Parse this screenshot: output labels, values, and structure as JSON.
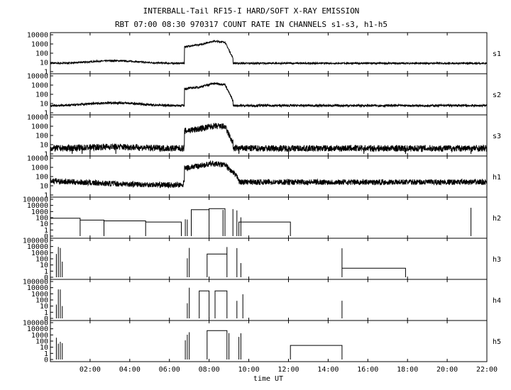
{
  "chart_data": {
    "type": "line",
    "title": "INTERBALL-Tail RF15-I HARD/SOFT X-RAY EMISSION",
    "subtitle": "RBT 07:00 08:30 970317  COUNT RATE IN CHANNELS s1-s3, h1-h5",
    "xlabel": "time UT",
    "x_tick_labels": [
      "02:00",
      "04:00",
      "06:00",
      "08:00",
      "10:00",
      "12:00",
      "14:00",
      "16:00",
      "18:00",
      "20:00",
      "22:00"
    ],
    "xlim_hours": [
      0,
      22
    ],
    "yscale": "log",
    "panels": [
      {
        "channel": "s1",
        "y_tick_labels": [
          "1",
          "10",
          "100",
          "1000",
          "10000"
        ],
        "ylim": [
          1,
          10000
        ],
        "baseline": 8,
        "pre_hump": 15,
        "burst": [
          [
            6.75,
            500
          ],
          [
            7.5,
            800
          ],
          [
            8.2,
            2000
          ],
          [
            8.8,
            1600
          ],
          [
            9.2,
            30
          ]
        ],
        "noise": 0.08,
        "spikes": []
      },
      {
        "channel": "s2",
        "y_tick_labels": [
          "1",
          "10",
          "100",
          "1000",
          "10000"
        ],
        "ylim": [
          1,
          10000
        ],
        "baseline": 6,
        "pre_hump": 12,
        "burst": [
          [
            6.75,
            400
          ],
          [
            7.5,
            600
          ],
          [
            8.2,
            1500
          ],
          [
            8.8,
            1200
          ],
          [
            9.2,
            20
          ]
        ],
        "noise": 0.12,
        "spikes": []
      },
      {
        "channel": "s3",
        "y_tick_labels": [
          "1",
          "10",
          "100",
          "1000",
          "10000"
        ],
        "ylim": [
          1,
          10000
        ],
        "baseline": 4,
        "pre_hump": 6,
        "burst": [
          [
            6.75,
            300
          ],
          [
            7.5,
            500
          ],
          [
            8.2,
            1000
          ],
          [
            8.8,
            900
          ],
          [
            9.2,
            15
          ]
        ],
        "noise": 0.35,
        "spikes": [
          1.1,
          1.6,
          2.0,
          3.3,
          9.5,
          12.0,
          15.8,
          17.9,
          21.2
        ]
      },
      {
        "channel": "h1",
        "y_tick_labels": [
          "1",
          "10",
          "100",
          "1000",
          "10000"
        ],
        "ylim": [
          1,
          10000
        ],
        "baseline": 25,
        "pre_hump": 10,
        "burst": [
          [
            6.75,
            800
          ],
          [
            7.5,
            1500
          ],
          [
            8.2,
            2500
          ],
          [
            8.8,
            1800
          ],
          [
            9.5,
            60
          ]
        ],
        "noise": 0.3,
        "spikes": []
      },
      {
        "channel": "h2",
        "y_tick_labels": [
          "0",
          "1",
          "10",
          "100",
          "1000",
          "10000",
          "100000"
        ],
        "ylim": [
          0.1,
          100000
        ],
        "steps": [
          [
            0,
            1.5,
            80
          ],
          [
            1.5,
            2.7,
            40
          ],
          [
            2.7,
            4.8,
            30
          ],
          [
            4.8,
            6.6,
            20
          ],
          [
            7.1,
            8.0,
            2000
          ],
          [
            8.0,
            8.8,
            3000
          ],
          [
            9.5,
            12.1,
            20
          ]
        ],
        "spikes": [
          6.8,
          6.9,
          8.7,
          9.2,
          9.4,
          9.6,
          21.2
        ]
      },
      {
        "channel": "h3",
        "y_tick_labels": [
          "0",
          "1",
          "10",
          "100",
          "1000",
          "10000",
          "100000"
        ],
        "ylim": [
          0.1,
          100000
        ],
        "steps": [
          [
            7.9,
            8.9,
            600
          ],
          [
            14.7,
            17.9,
            3
          ]
        ],
        "spikes": [
          0.3,
          0.4,
          0.5,
          0.6,
          6.9,
          7.0,
          8.9,
          9.4,
          9.6,
          14.7
        ]
      },
      {
        "channel": "h4",
        "y_tick_labels": [
          "0",
          "1",
          "10",
          "100",
          "1000",
          "10000",
          "100000"
        ],
        "ylim": [
          0.1,
          100000
        ],
        "steps": [
          [
            7.5,
            8.0,
            3000
          ],
          [
            8.3,
            8.9,
            3000
          ]
        ],
        "spikes": [
          0.3,
          0.4,
          0.5,
          0.6,
          6.9,
          7.0,
          9.4,
          9.7,
          14.7
        ]
      },
      {
        "channel": "h5",
        "y_tick_labels": [
          "0",
          "1",
          "10",
          "100",
          "1000",
          "10000",
          "100000"
        ],
        "ylim": [
          0.1,
          100000
        ],
        "steps": [
          [
            7.9,
            8.9,
            5000
          ],
          [
            12.1,
            14.7,
            20
          ]
        ],
        "spikes": [
          0.3,
          0.4,
          0.5,
          0.6,
          6.8,
          6.9,
          7.0,
          9.0,
          9.5,
          9.6
        ]
      }
    ],
    "grid": false
  }
}
